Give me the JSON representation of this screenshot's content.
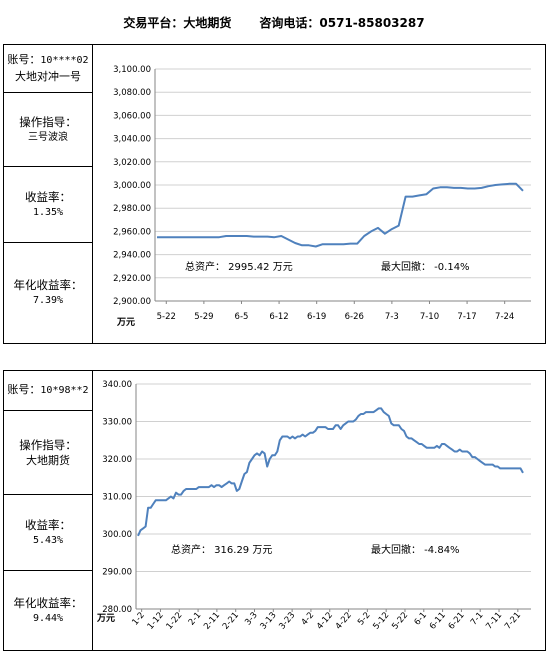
{
  "header": {
    "platform": "交易平台：大地期货",
    "phone": "咨询电话：0571-85803287"
  },
  "panels": [
    {
      "account_label": "账号：",
      "account_value": "10****02",
      "account_name": "大地对冲一号",
      "guide_label": "操作指导：",
      "guide_value": "三号波浪",
      "return_label": "收益率：",
      "return_value": "1.35%",
      "annual_label": "年化收益率：",
      "annual_value": "7.39%"
    },
    {
      "account_label": "账号：",
      "account_value": "10*98**2",
      "account_name": "",
      "guide_label": "操作指导：",
      "guide_value": "大地期货",
      "return_label": "收益率：",
      "return_value": "5.43%",
      "annual_label": "年化收益率：",
      "annual_value": "9.44%"
    }
  ],
  "colors": {
    "line": "#4f81bd",
    "grid": "#d0d0d0",
    "axis": "#868686"
  },
  "chart_data": [
    {
      "type": "line",
      "unit_label": "万元",
      "ylim": [
        2900,
        3100
      ],
      "yticks": [
        "2,900.00",
        "2,920.00",
        "2,940.00",
        "2,960.00",
        "2,980.00",
        "3,000.00",
        "3,020.00",
        "3,040.00",
        "3,060.00",
        "3,080.00",
        "3,100.00"
      ],
      "xticks": [
        "5-22",
        "5-29",
        "6-5",
        "6-12",
        "6-19",
        "6-26",
        "7-3",
        "7-10",
        "7-17",
        "7-24"
      ],
      "grid": true,
      "annotations": {
        "total_label": "总资产： 2995.42 万元",
        "drawdown_label": "最大回撤： -0.14%"
      },
      "values": [
        2955,
        2955,
        2955,
        2955,
        2955,
        2955,
        2955,
        2955,
        2955,
        2955,
        2956,
        2956,
        2956,
        2956,
        2955.5,
        2955.5,
        2955.5,
        2955,
        2956,
        2953,
        2950,
        2948,
        2948,
        2947,
        2949,
        2949,
        2949,
        2949,
        2949.5,
        2949.5,
        2956,
        2960,
        2963,
        2958,
        2962,
        2965,
        2990,
        2990,
        2991,
        2992,
        2997,
        2998,
        2998,
        2997.5,
        2997.5,
        2997,
        2997,
        2997.5,
        2999,
        3000,
        3000.5,
        3001,
        3001,
        2995
      ]
    },
    {
      "type": "line",
      "unit_label": "万元",
      "ylim": [
        280,
        340
      ],
      "yticks": [
        "280.00",
        "290.00",
        "300.00",
        "310.00",
        "320.00",
        "330.00",
        "340.00"
      ],
      "xticks": [
        "1-2",
        "1-12",
        "1-22",
        "2-1",
        "2-11",
        "2-21",
        "3-3",
        "3-13",
        "3-23",
        "4-2",
        "4-12",
        "4-22",
        "5-2",
        "5-12",
        "5-22",
        "6-1",
        "6-11",
        "6-21",
        "7-1",
        "7-11",
        "7-21"
      ],
      "grid": true,
      "annotations": {
        "total_label": "总资产： 316.29 万元",
        "drawdown_label": "最大回撤： -4.84%"
      },
      "values": [
        299.5,
        301,
        301.5,
        302,
        307,
        307,
        308,
        309,
        309,
        309,
        309,
        309,
        309.5,
        310,
        309.5,
        311,
        310.5,
        310.5,
        311.5,
        312,
        312,
        312,
        312,
        312,
        312.5,
        312.5,
        312.5,
        312.5,
        312.5,
        313,
        312.5,
        313,
        313,
        312.5,
        313,
        313.5,
        314,
        313.5,
        313.5,
        311.5,
        312,
        314,
        316,
        316.5,
        319,
        320,
        321,
        321.5,
        321,
        322,
        321.5,
        318,
        320,
        321,
        321,
        322,
        325,
        326,
        326,
        326,
        325.5,
        326,
        325.5,
        326,
        326,
        326.5,
        326,
        326.5,
        327,
        327,
        327.5,
        328.5,
        328.5,
        328.5,
        328.5,
        328,
        328,
        328,
        329,
        329,
        328,
        329,
        329.5,
        330,
        330,
        330,
        330.5,
        331.5,
        332,
        332,
        332.5,
        332.5,
        332.5,
        332.5,
        333,
        333.5,
        333.5,
        332.5,
        332,
        331.5,
        329.5,
        329,
        329,
        329,
        328,
        327.5,
        326,
        325.5,
        325.5,
        325,
        324.5,
        324,
        324,
        323.5,
        323,
        323,
        323,
        323,
        323.5,
        323,
        324,
        324,
        323.5,
        323,
        322.5,
        322,
        322,
        322.5,
        322,
        322,
        322,
        321.5,
        320.5,
        320.5,
        320,
        319.5,
        319,
        318.5,
        318.5,
        318.5,
        318.5,
        318,
        318,
        317.5,
        317.5,
        317.5,
        317.5,
        317.5,
        317.5,
        317.5,
        317.5,
        317.5,
        316.3
      ]
    }
  ]
}
